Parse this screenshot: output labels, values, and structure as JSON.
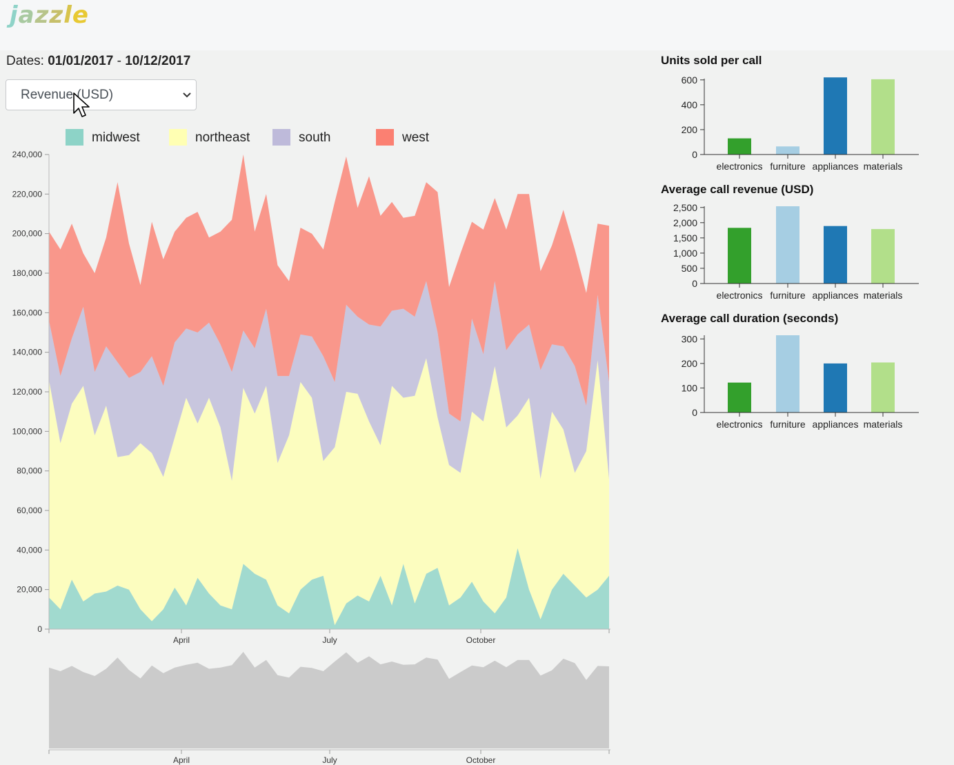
{
  "header": {
    "logo_letters": [
      {
        "ch": "j",
        "color": "#8fd3c8"
      },
      {
        "ch": "a",
        "color": "#a8c9a0"
      },
      {
        "ch": "z",
        "color": "#b7c48a"
      },
      {
        "ch": "z",
        "color": "#c6bf6a"
      },
      {
        "ch": "l",
        "color": "#d8c44d"
      },
      {
        "ch": "e",
        "color": "#e8c933"
      }
    ]
  },
  "filters": {
    "dates_label": "Dates:",
    "date_start": "01/01/2017",
    "date_separator": "-",
    "date_end": "10/12/2017",
    "metric_selected": "Revenue (USD)"
  },
  "legend": [
    {
      "name": "midwest",
      "color": "#8dd3c7"
    },
    {
      "name": "northeast",
      "color": "#ffffb3"
    },
    {
      "name": "south",
      "color": "#bebada"
    },
    {
      "name": "west",
      "color": "#fb8072"
    }
  ],
  "chart_data": [
    {
      "type": "area",
      "stacked": true,
      "title": "",
      "x_tick_labels": [
        "April",
        "July",
        "October"
      ],
      "y_ticks": [
        "0",
        "20,000",
        "40,000",
        "60,000",
        "80,000",
        "100,000",
        "120,000",
        "140,000",
        "160,000",
        "180,000",
        "200,000",
        "220,000",
        "240,000"
      ],
      "ylim": [
        0,
        240000
      ],
      "series": [
        {
          "name": "midwest",
          "values": [
            16000,
            10000,
            25000,
            14000,
            18000,
            19000,
            22000,
            20000,
            10000,
            4000,
            10000,
            21000,
            12000,
            26000,
            18000,
            12000,
            10000,
            33000,
            28000,
            25000,
            12000,
            8000,
            20000,
            25000,
            27000,
            2000,
            13000,
            17000,
            14000,
            27000,
            12000,
            33000,
            13000,
            28000,
            31000,
            12000,
            16000,
            24000,
            14000,
            8000,
            16000,
            41000,
            20000,
            5000,
            20000,
            28000,
            22000,
            16000,
            20000,
            27000
          ]
        },
        {
          "name": "northeast",
          "values": [
            110000,
            84000,
            89000,
            109000,
            80000,
            94000,
            65000,
            68000,
            84000,
            85000,
            67000,
            76000,
            105000,
            78000,
            99000,
            90000,
            65000,
            89000,
            81000,
            98000,
            72000,
            90000,
            105000,
            92000,
            58000,
            90000,
            107000,
            102000,
            91000,
            66000,
            111000,
            84000,
            105000,
            109000,
            76000,
            71000,
            63000,
            86000,
            91000,
            125000,
            86000,
            67000,
            97000,
            71000,
            90000,
            73000,
            57000,
            74000,
            116000,
            49000
          ]
        },
        {
          "name": "south",
          "values": [
            30000,
            34000,
            33000,
            40000,
            32000,
            30000,
            48000,
            39000,
            36000,
            49000,
            46000,
            48000,
            35000,
            46000,
            38000,
            42000,
            55000,
            29000,
            33000,
            39000,
            44000,
            30000,
            24000,
            31000,
            53000,
            33000,
            44000,
            39000,
            49000,
            60000,
            38000,
            45000,
            40000,
            39000,
            43000,
            26000,
            26000,
            47000,
            34000,
            43000,
            39000,
            41000,
            37000,
            55000,
            34000,
            42000,
            54000,
            23000,
            33000,
            49000
          ]
        },
        {
          "name": "west",
          "values": [
            45000,
            64000,
            58000,
            27000,
            50000,
            55000,
            91000,
            68000,
            44000,
            68000,
            64000,
            56000,
            56000,
            61000,
            43000,
            57000,
            77000,
            89000,
            59000,
            58000,
            56000,
            48000,
            54000,
            52000,
            54000,
            91000,
            75000,
            55000,
            75000,
            56000,
            55000,
            46000,
            51000,
            50000,
            71000,
            64000,
            85000,
            49000,
            63000,
            42000,
            61000,
            71000,
            66000,
            50000,
            50000,
            69000,
            59000,
            57000,
            36000,
            79000
          ]
        }
      ]
    },
    {
      "type": "area",
      "title": "",
      "x_tick_labels": [
        "April",
        "July",
        "October"
      ],
      "series": [
        {
          "name": "",
          "values": [
            201000,
            192000,
            205000,
            190000,
            180000,
            198000,
            226000,
            195000,
            174000,
            206000,
            187000,
            201000,
            208000,
            213000,
            198000,
            201000,
            207000,
            240000,
            201000,
            220000,
            182000,
            176000,
            203000,
            200000,
            192000,
            216000,
            239000,
            213000,
            229000,
            209000,
            216000,
            208000,
            209000,
            226000,
            221000,
            173000,
            190000,
            206000,
            202000,
            218000,
            202000,
            220000,
            220000,
            181000,
            194000,
            223000,
            212000,
            170000,
            205000,
            204000
          ]
        }
      ]
    },
    {
      "type": "bar",
      "title": "Units sold per call",
      "categories": [
        "electronics",
        "furniture",
        "appliances",
        "materials"
      ],
      "values": [
        130,
        65,
        620,
        605
      ],
      "colors": [
        "#33a02c",
        "#a6cee3",
        "#1f78b4",
        "#b2df8a"
      ],
      "y_ticks": [
        "0",
        "200",
        "400",
        "600"
      ],
      "ylim": [
        0,
        610
      ]
    },
    {
      "type": "bar",
      "title": "Average call revenue (USD)",
      "categories": [
        "electronics",
        "furniture",
        "appliances",
        "materials"
      ],
      "values": [
        1830,
        2540,
        1890,
        1790
      ],
      "colors": [
        "#33a02c",
        "#a6cee3",
        "#1f78b4",
        "#b2df8a"
      ],
      "y_ticks": [
        "0",
        "500",
        "1,000",
        "1,500",
        "2,000",
        "2,500"
      ],
      "ylim": [
        0,
        2540
      ]
    },
    {
      "type": "bar",
      "title": "Average call duration (seconds)",
      "categories": [
        "electronics",
        "furniture",
        "appliances",
        "materials"
      ],
      "values": [
        122,
        315,
        200,
        204
      ],
      "colors": [
        "#33a02c",
        "#a6cee3",
        "#1f78b4",
        "#b2df8a"
      ],
      "y_ticks": [
        "0",
        "100",
        "200",
        "300"
      ],
      "ylim": [
        0,
        315
      ]
    }
  ]
}
